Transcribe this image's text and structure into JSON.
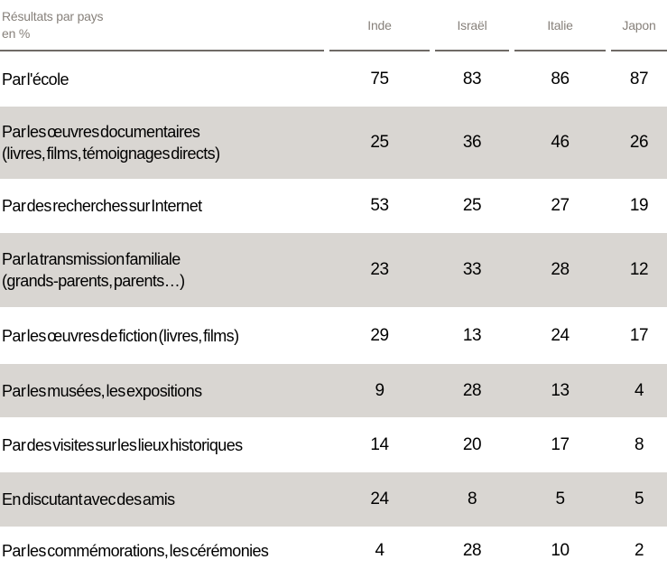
{
  "table": {
    "corner": {
      "line1": "Résultats par pays",
      "line2": "en %"
    },
    "columns": [
      "Inde",
      "Israël",
      "Italie",
      "Japon"
    ],
    "rows": [
      {
        "label": "Par l'école",
        "sublabel": "",
        "values": [
          75,
          83,
          86,
          87
        ]
      },
      {
        "label": "Par les œuvres documentaires",
        "sublabel": "(livres, films, témoignages directs)",
        "values": [
          25,
          36,
          46,
          26
        ]
      },
      {
        "label": "Par des recherches sur Internet",
        "sublabel": "",
        "values": [
          53,
          25,
          27,
          19
        ]
      },
      {
        "label": "Par la transmission familiale",
        "sublabel": "(grands-parents, parents…)",
        "values": [
          23,
          33,
          28,
          12
        ]
      },
      {
        "label": "Par les œuvres de fiction (livres, films)",
        "sublabel": "",
        "values": [
          29,
          13,
          24,
          17
        ]
      },
      {
        "label": "Par les musées, les expositions",
        "sublabel": "",
        "values": [
          9,
          28,
          13,
          4
        ]
      },
      {
        "label": "Par des visites sur les lieux historiques",
        "sublabel": "",
        "values": [
          14,
          20,
          17,
          8
        ]
      },
      {
        "label": "En discutant avec des amis",
        "sublabel": "",
        "values": [
          24,
          8,
          5,
          5
        ]
      },
      {
        "label": "Par les commémorations, les cérémonies",
        "sublabel": "",
        "values": [
          4,
          28,
          10,
          2
        ]
      }
    ],
    "colors": {
      "shaded_row_bg": "#d9d6d2",
      "header_text": "#87817b",
      "header_rule": "#6f6a66",
      "body_text": "#000000"
    }
  },
  "chart_data": {
    "type": "table",
    "title": "Résultats par pays en %",
    "categories": [
      "Inde",
      "Israël",
      "Italie",
      "Japon"
    ],
    "series": [
      {
        "name": "Par l'école",
        "values": [
          75,
          83,
          86,
          87
        ]
      },
      {
        "name": "Par les œuvres documentaires (livres, films, témoignages directs)",
        "values": [
          25,
          36,
          46,
          26
        ]
      },
      {
        "name": "Par des recherches sur Internet",
        "values": [
          53,
          25,
          27,
          19
        ]
      },
      {
        "name": "Par la transmission familiale (grands-parents, parents…)",
        "values": [
          23,
          33,
          28,
          12
        ]
      },
      {
        "name": "Par les œuvres de fiction (livres, films)",
        "values": [
          29,
          13,
          24,
          17
        ]
      },
      {
        "name": "Par les musées, les expositions",
        "values": [
          9,
          28,
          13,
          4
        ]
      },
      {
        "name": "Par des visites sur les lieux historiques",
        "values": [
          14,
          20,
          17,
          8
        ]
      },
      {
        "name": "En discutant avec des amis",
        "values": [
          24,
          8,
          5,
          5
        ]
      },
      {
        "name": "Par les commémorations, les cérémonies",
        "values": [
          4,
          28,
          10,
          2
        ]
      }
    ],
    "layout": {
      "shaded_rows": [
        1,
        3,
        5,
        7
      ],
      "values_alignment": "center",
      "unit": "%"
    }
  }
}
